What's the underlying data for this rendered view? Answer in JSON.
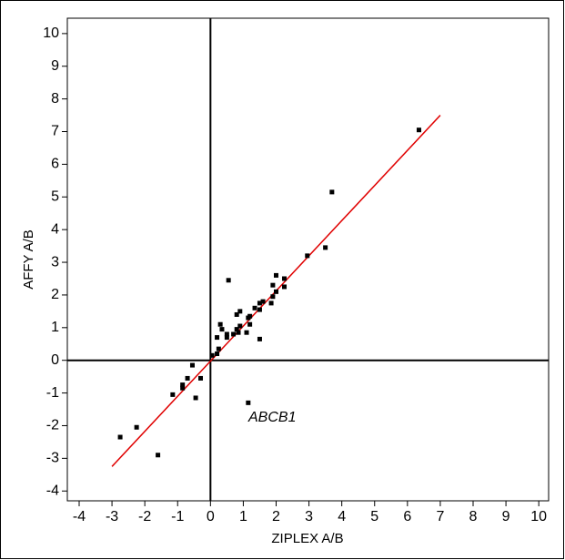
{
  "chart_data": {
    "type": "scatter",
    "x_label": "ZIPLEX A/B",
    "y_label": "AFFY A/B",
    "color": "#000000",
    "x": [
      6.35,
      3.7,
      3.5,
      2.95,
      2.0,
      2.25,
      2.25,
      1.9,
      2.0,
      1.9,
      1.85,
      1.6,
      1.5,
      1.5,
      1.5,
      1.35,
      1.2,
      1.15,
      1.2,
      1.1,
      0.55,
      0.9,
      0.8,
      0.9,
      0.8,
      0.85,
      0.7,
      0.5,
      0.5,
      0.35,
      0.3,
      0.2,
      0.25,
      0.2,
      0.05,
      -0.55,
      -0.7,
      -0.85,
      -0.85,
      -0.3,
      -0.45,
      -1.15,
      1.15,
      -2.25,
      -2.75,
      -1.6
    ],
    "values": [
      7.05,
      5.15,
      3.45,
      3.2,
      2.6,
      2.5,
      2.25,
      2.3,
      2.1,
      1.95,
      1.75,
      1.8,
      1.75,
      1.55,
      0.65,
      1.6,
      1.35,
      1.3,
      1.1,
      0.85,
      2.45,
      1.5,
      1.4,
      1.05,
      0.95,
      0.85,
      0.8,
      0.8,
      0.7,
      0.95,
      1.1,
      0.7,
      0.35,
      0.2,
      0.15,
      -0.15,
      -0.55,
      -0.75,
      -0.85,
      -0.55,
      -1.15,
      -1.05,
      -1.3,
      -2.05,
      -2.35,
      -2.9
    ],
    "fit_line": {
      "x": [
        -3,
        7
      ],
      "y": [
        -3.25,
        7.5
      ],
      "color": "#e00000"
    },
    "annotations": [
      {
        "text": "ABCB1"
      }
    ],
    "xlim": [
      -4.36,
      10.3
    ],
    "xticks": [
      -4,
      -3,
      -2,
      -1,
      0,
      1,
      2,
      3,
      4,
      5,
      6,
      7,
      8,
      9,
      10
    ],
    "ylim": [
      -4.3,
      10.47
    ],
    "yticks": [
      -4,
      -3,
      -2,
      -1,
      0,
      1,
      2,
      3,
      4,
      5,
      6,
      7,
      8,
      9,
      10
    ],
    "zero_lines": true
  }
}
